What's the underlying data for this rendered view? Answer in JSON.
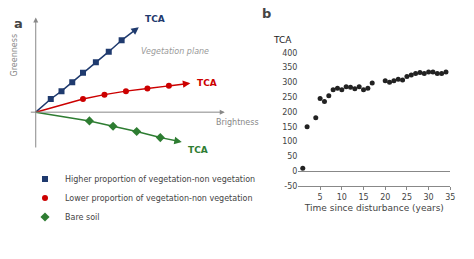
{
  "chart_data": [
    {
      "type": "scatter",
      "title": "a",
      "tick_labels": false,
      "xlim": [
        -0.05,
        0.92
      ],
      "ylim": [
        -0.45,
        1.12
      ],
      "legend": "bottom",
      "axis_arrows": [
        {
          "from": [
            -0.03,
            0.0
          ],
          "to": [
            0.88,
            0.0
          ],
          "color": "#888888"
        },
        {
          "from": [
            0.0,
            -0.42
          ],
          "to": [
            0.0,
            1.08
          ],
          "color": "#888888"
        }
      ],
      "annotations": [
        {
          "text": "Greenness",
          "x": -0.1,
          "y": 0.65,
          "color": "#888888"
        },
        {
          "text": "Brightness",
          "x": 0.83,
          "y": -0.04,
          "color": "#888888"
        },
        {
          "text": "Vegetation plane",
          "x": 0.48,
          "y": 0.62,
          "color": "#999999"
        }
      ],
      "series": [
        {
          "name": "Higher proportion of vegetation-non vegetation",
          "color": "#1f3a6e",
          "marker": "square",
          "origin": [
            0.0,
            0.0
          ],
          "x": [
            0.07,
            0.12,
            0.17,
            0.22,
            0.28,
            0.34,
            0.4
          ],
          "values": [
            0.15,
            0.24,
            0.34,
            0.45,
            0.57,
            0.69,
            0.82
          ],
          "arrow": {
            "from": [
              0.4,
              0.82
            ],
            "to": [
              0.48,
              0.97
            ]
          },
          "label": {
            "text": "TCA",
            "x": 0.5,
            "y": 0.98
          }
        },
        {
          "name": "Lower proportion of vegetation-non vegetation",
          "color": "#cc0000",
          "marker": "circle",
          "origin": [
            0.0,
            0.0
          ],
          "x": [
            0.22,
            0.32,
            0.42,
            0.52,
            0.62
          ],
          "values": [
            0.15,
            0.2,
            0.24,
            0.27,
            0.3
          ],
          "arrow": {
            "from": [
              0.62,
              0.3
            ],
            "to": [
              0.72,
              0.33
            ]
          },
          "label": {
            "text": "TCA",
            "x": 0.74,
            "y": 0.33
          }
        },
        {
          "name": "Bare soil",
          "color": "#2e7d32",
          "marker": "diamond",
          "origin": [
            0.0,
            0.0
          ],
          "x": [
            0.25,
            0.36,
            0.47,
            0.58
          ],
          "values": [
            -0.1,
            -0.16,
            -0.22,
            -0.29
          ],
          "arrow": {
            "from": [
              0.58,
              -0.29
            ],
            "to": [
              0.68,
              -0.34
            ]
          },
          "label": {
            "text": "TCA",
            "x": 0.7,
            "y": -0.35
          }
        }
      ]
    },
    {
      "type": "scatter",
      "title": "b",
      "x": [
        1,
        2,
        4,
        5,
        6,
        7,
        8,
        9,
        10,
        11,
        12,
        13,
        14,
        15,
        16,
        17,
        20,
        21,
        22,
        23,
        24,
        25,
        26,
        27,
        28,
        29,
        30,
        31,
        32,
        33,
        34
      ],
      "values": [
        10,
        150,
        180,
        245,
        235,
        255,
        275,
        280,
        275,
        285,
        283,
        278,
        285,
        275,
        280,
        298,
        305,
        300,
        305,
        310,
        308,
        320,
        325,
        330,
        333,
        330,
        335,
        335,
        330,
        330,
        335
      ],
      "color": "#222222",
      "xlabel": "Time since disturbance (years)",
      "ylabel": "TCA",
      "xlim": [
        0,
        35
      ],
      "ylim": [
        -50,
        400
      ],
      "xticks": [
        5,
        10,
        15,
        20,
        25,
        30,
        35
      ],
      "yticks": [
        -50,
        0,
        50,
        100,
        150,
        200,
        250,
        300,
        350,
        400
      ],
      "grid": false
    }
  ]
}
